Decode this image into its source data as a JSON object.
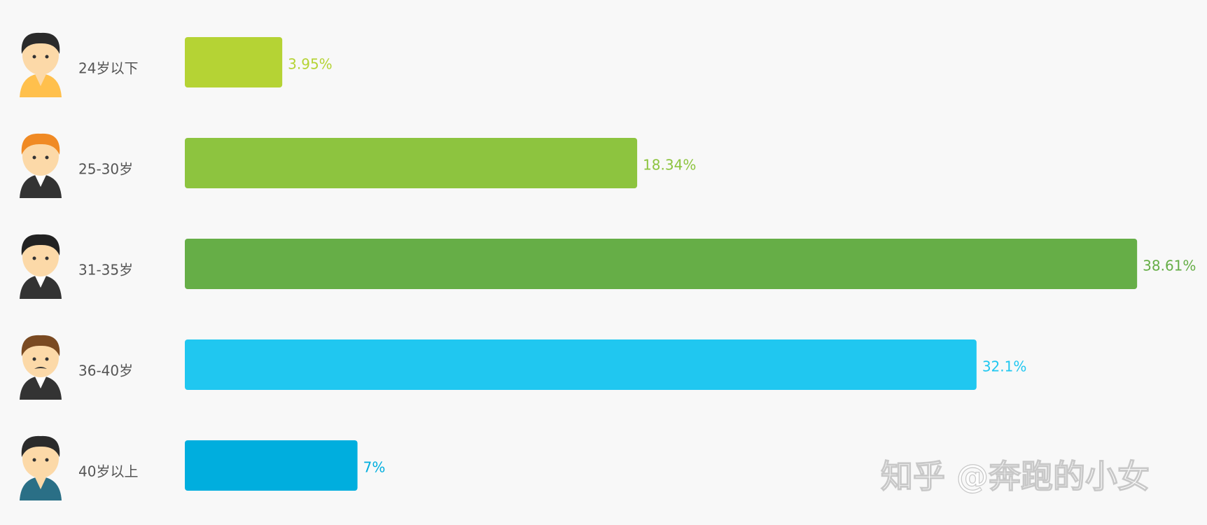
{
  "chart_data": {
    "type": "bar",
    "orientation": "horizontal",
    "categories": [
      "24岁以下",
      "25-30岁",
      "31-35岁",
      "36-40岁",
      "40岁以上"
    ],
    "values": [
      3.95,
      18.34,
      38.61,
      32.1,
      7
    ],
    "value_labels": [
      "3.95%",
      "18.34%",
      "38.61%",
      "32.1%",
      "7%"
    ],
    "colors": [
      "#b5d334",
      "#8dc43f",
      "#66ae47",
      "#20c7f0",
      "#00aede"
    ]
  },
  "watermark": "知乎 @奔跑的小女"
}
